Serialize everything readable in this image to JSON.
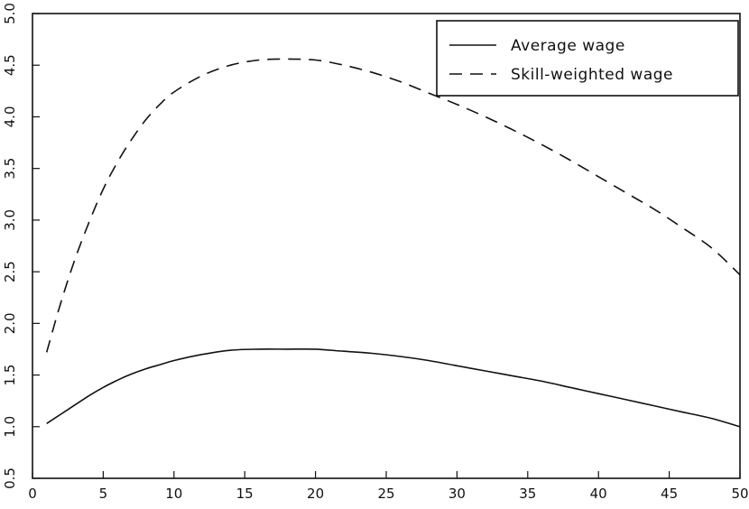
{
  "chart_data": {
    "type": "line",
    "title": "",
    "xlabel": "",
    "ylabel": "",
    "xlim": [
      0,
      50
    ],
    "ylim": [
      0.5,
      5.0
    ],
    "x_ticks": [
      0,
      5,
      10,
      15,
      20,
      25,
      30,
      35,
      40,
      45,
      50
    ],
    "y_ticks": [
      0.5,
      1.0,
      1.5,
      2.0,
      2.5,
      3.0,
      3.5,
      4.0,
      4.5,
      5.0
    ],
    "y_tick_labels": [
      "0.5",
      "1.0",
      "1.5",
      "2.0",
      "2.5",
      "3.0",
      "3.5",
      "4.0",
      "4.5",
      "5.0"
    ],
    "grid": false,
    "legend_position": "top-right",
    "x": [
      1,
      2,
      3,
      4,
      5,
      6,
      7,
      8,
      9,
      10,
      12,
      14,
      16,
      18,
      20,
      22,
      24,
      26,
      28,
      30,
      32,
      34,
      36,
      38,
      40,
      42,
      44,
      46,
      48,
      50
    ],
    "series": [
      {
        "name": "Average wage",
        "style": "solid",
        "values": [
          1.03,
          1.12,
          1.21,
          1.3,
          1.38,
          1.45,
          1.51,
          1.56,
          1.6,
          1.64,
          1.7,
          1.74,
          1.75,
          1.75,
          1.75,
          1.73,
          1.71,
          1.68,
          1.64,
          1.59,
          1.54,
          1.49,
          1.44,
          1.38,
          1.32,
          1.26,
          1.2,
          1.14,
          1.08,
          1.0
        ]
      },
      {
        "name": "Skill-weighted wage",
        "style": "dashed",
        "values": [
          1.72,
          2.2,
          2.62,
          2.98,
          3.3,
          3.56,
          3.78,
          3.97,
          4.12,
          4.24,
          4.4,
          4.5,
          4.55,
          4.56,
          4.55,
          4.5,
          4.43,
          4.34,
          4.23,
          4.12,
          4.0,
          3.87,
          3.73,
          3.58,
          3.42,
          3.26,
          3.1,
          2.92,
          2.73,
          2.47
        ]
      }
    ]
  }
}
